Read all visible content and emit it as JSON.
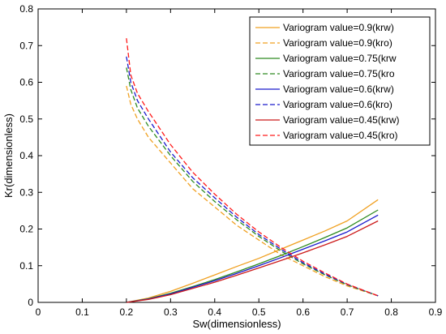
{
  "chart_data": {
    "type": "line",
    "title": "",
    "xlabel": "Sw(dimensionless)",
    "ylabel": "Kr(dimensionless)",
    "xlim": [
      0,
      0.9
    ],
    "ylim": [
      0,
      0.8
    ],
    "xticks": [
      0,
      0.1,
      0.2,
      0.3,
      0.4,
      0.5,
      0.6,
      0.7,
      0.8,
      0.9
    ],
    "yticks": [
      0,
      0.1,
      0.2,
      0.3,
      0.4,
      0.5,
      0.6,
      0.7,
      0.8
    ],
    "grid": false,
    "legend_position": "top-right",
    "series": [
      {
        "name": "Variogram value=0.9(krw)",
        "color": "#f0a020",
        "linestyle": "solid",
        "x": [
          0.2,
          0.25,
          0.3,
          0.35,
          0.4,
          0.45,
          0.5,
          0.55,
          0.6,
          0.65,
          0.7,
          0.77
        ],
        "y": [
          0.0,
          0.012,
          0.03,
          0.052,
          0.075,
          0.098,
          0.12,
          0.145,
          0.17,
          0.195,
          0.222,
          0.28
        ]
      },
      {
        "name": "Variogram value=0.9(kro)",
        "color": "#f0a020",
        "linestyle": "dashed",
        "x": [
          0.2,
          0.21,
          0.225,
          0.25,
          0.3,
          0.35,
          0.4,
          0.45,
          0.5,
          0.55,
          0.6,
          0.65,
          0.7,
          0.77
        ],
        "y": [
          0.59,
          0.54,
          0.5,
          0.45,
          0.38,
          0.31,
          0.26,
          0.21,
          0.17,
          0.13,
          0.1,
          0.07,
          0.045,
          0.018
        ]
      },
      {
        "name": "Variogram value=0.75(krw",
        "color": "#2e8b20",
        "linestyle": "solid",
        "x": [
          0.2,
          0.25,
          0.3,
          0.35,
          0.4,
          0.45,
          0.5,
          0.55,
          0.6,
          0.65,
          0.7,
          0.77
        ],
        "y": [
          0.0,
          0.01,
          0.025,
          0.043,
          0.062,
          0.083,
          0.105,
          0.128,
          0.152,
          0.177,
          0.203,
          0.252
        ]
      },
      {
        "name": "Variogram value=0.75(kro",
        "color": "#2e8b20",
        "linestyle": "dashed",
        "x": [
          0.2,
          0.21,
          0.225,
          0.25,
          0.3,
          0.35,
          0.4,
          0.45,
          0.5,
          0.55,
          0.6,
          0.65,
          0.7,
          0.77
        ],
        "y": [
          0.64,
          0.58,
          0.53,
          0.48,
          0.4,
          0.33,
          0.275,
          0.225,
          0.18,
          0.14,
          0.105,
          0.075,
          0.048,
          0.018
        ]
      },
      {
        "name": "Variogram value=0.6(krw)",
        "color": "#1a1acc",
        "linestyle": "solid",
        "x": [
          0.2,
          0.25,
          0.3,
          0.35,
          0.4,
          0.45,
          0.5,
          0.55,
          0.6,
          0.65,
          0.7,
          0.77
        ],
        "y": [
          0.0,
          0.009,
          0.023,
          0.041,
          0.059,
          0.079,
          0.1,
          0.122,
          0.145,
          0.168,
          0.192,
          0.238
        ]
      },
      {
        "name": "Variogram value=0.6(kro)",
        "color": "#1a1acc",
        "linestyle": "dashed",
        "x": [
          0.2,
          0.21,
          0.225,
          0.25,
          0.3,
          0.35,
          0.4,
          0.45,
          0.5,
          0.55,
          0.6,
          0.65,
          0.7,
          0.77
        ],
        "y": [
          0.67,
          0.6,
          0.55,
          0.5,
          0.41,
          0.34,
          0.285,
          0.232,
          0.185,
          0.145,
          0.108,
          0.077,
          0.049,
          0.018
        ]
      },
      {
        "name": "Variogram value=0.45(krw)",
        "color": "#cc1a1a",
        "linestyle": "solid",
        "x": [
          0.2,
          0.25,
          0.3,
          0.35,
          0.4,
          0.45,
          0.5,
          0.55,
          0.6,
          0.65,
          0.7,
          0.77
        ],
        "y": [
          0.0,
          0.008,
          0.021,
          0.038,
          0.055,
          0.074,
          0.094,
          0.114,
          0.135,
          0.157,
          0.18,
          0.222
        ]
      },
      {
        "name": "Variogram value=0.45(kro)",
        "color": "#ff1a1a",
        "linestyle": "dashed",
        "x": [
          0.2,
          0.21,
          0.225,
          0.25,
          0.3,
          0.35,
          0.4,
          0.45,
          0.5,
          0.55,
          0.6,
          0.65,
          0.7,
          0.77
        ],
        "y": [
          0.72,
          0.62,
          0.57,
          0.52,
          0.43,
          0.355,
          0.295,
          0.24,
          0.192,
          0.15,
          0.112,
          0.08,
          0.05,
          0.018
        ]
      }
    ]
  }
}
